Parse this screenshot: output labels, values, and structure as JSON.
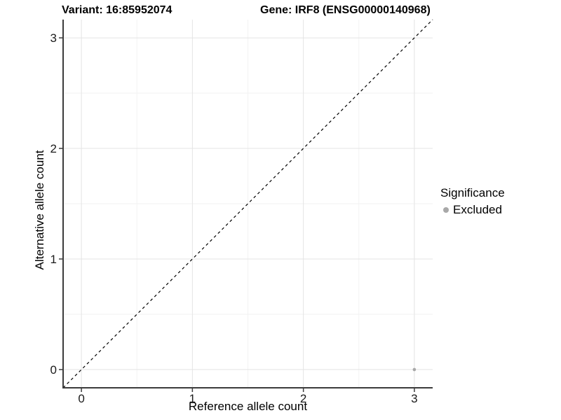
{
  "chart_data": {
    "type": "scatter",
    "title_variant": "Variant: 16:85952074",
    "title_gene": "Gene: IRF8 (ENSG00000140968)",
    "xlabel": "Reference allele count",
    "ylabel": "Alternative allele count",
    "xlim": [
      -0.165,
      3.165
    ],
    "ylim": [
      -0.165,
      3.165
    ],
    "x_ticks": [
      0,
      1,
      2,
      3
    ],
    "y_ticks": [
      0,
      1,
      2,
      3
    ],
    "x_tick_labels": [
      "0",
      "1",
      "2",
      "3"
    ],
    "y_tick_labels": [
      "0",
      "1",
      "2",
      "3"
    ],
    "x_minor": [
      0.5,
      1.5,
      2.5
    ],
    "y_minor": [
      0.5,
      1.5,
      2.5
    ],
    "grid": "major+minor",
    "legend_position": "right",
    "legend": {
      "title": "Significance",
      "items": [
        {
          "label": "Excluded",
          "color": "#A8A8A8"
        }
      ]
    },
    "series": [
      {
        "name": "Excluded",
        "color": "#A8A8A8",
        "point_radius": 2.3,
        "points": [
          {
            "x": 3,
            "y": 0
          }
        ]
      }
    ],
    "reference_line": {
      "slope": 1,
      "intercept": 0,
      "style": "dashed",
      "color": "#000000"
    },
    "colors": {
      "background": "#FFFFFF",
      "grid_major": "#E4E4E4",
      "grid_minor": "#F2F2F2",
      "axis": "#3C3C3C",
      "tick_label": "#1A1A1A"
    }
  }
}
